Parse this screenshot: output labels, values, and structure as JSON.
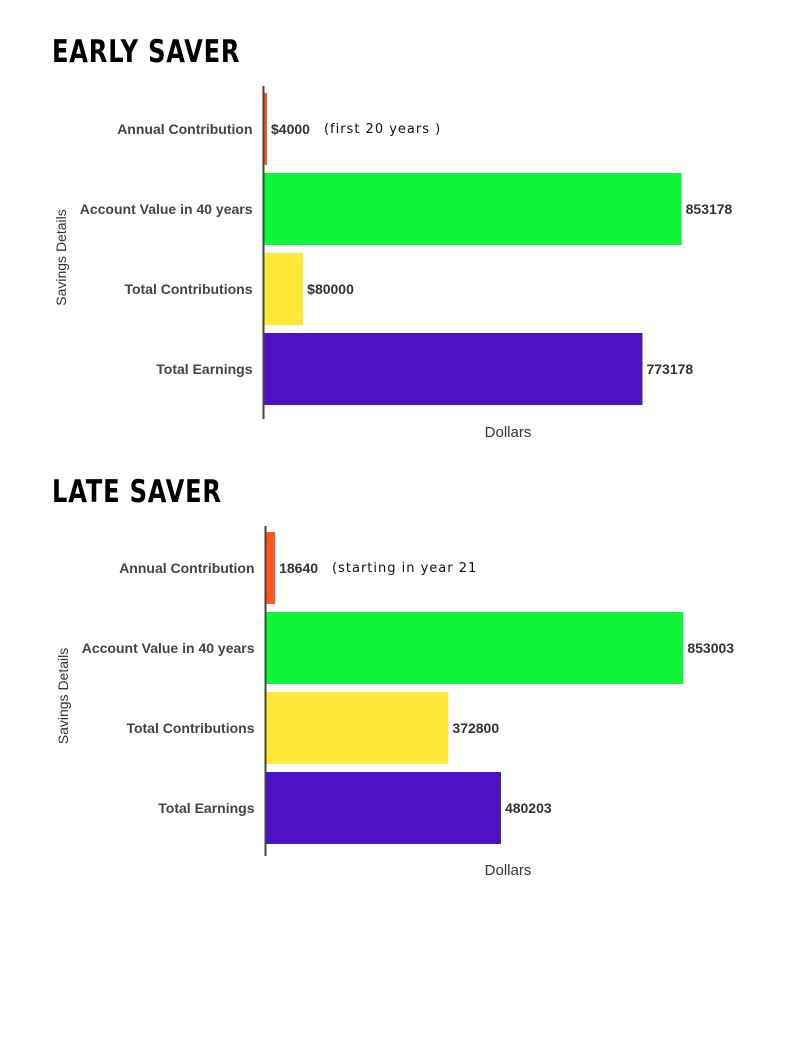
{
  "chart_data": [
    {
      "type": "bar",
      "orientation": "horizontal",
      "title": "EARLY SAVER",
      "xlabel": "Dollars",
      "ylabel": "Savings Details",
      "xlim": [
        0,
        950000
      ],
      "grid": false,
      "categories": [
        "Annual Contribution",
        "Account Value in 40 years",
        "Total Contributions",
        "Total Earnings"
      ],
      "values": [
        4000,
        853178,
        80000,
        773178
      ],
      "value_labels": [
        "$4000",
        "853178",
        "$80000",
        "773178"
      ],
      "annotations": [
        "(first 20 years )",
        "",
        "",
        ""
      ],
      "colors": [
        "#ff5722",
        "#10f53a",
        "#ffe838",
        "#4c12c4"
      ]
    },
    {
      "type": "bar",
      "orientation": "horizontal",
      "title": "LATE SAVER",
      "xlabel": "Dollars",
      "ylabel": "Savings Details",
      "xlim": [
        0,
        950000
      ],
      "grid": false,
      "categories": [
        "Annual Contribution",
        "Account Value in 40 years",
        "Total Contributions",
        "Total Earnings"
      ],
      "values": [
        18640,
        853003,
        372800,
        480203
      ],
      "value_labels": [
        "18640",
        "853003",
        "372800",
        "480203"
      ],
      "annotations": [
        "(starting in year 21",
        "",
        "",
        ""
      ],
      "colors": [
        "#ff5722",
        "#10f53a",
        "#ffe838",
        "#4c12c4"
      ]
    }
  ]
}
